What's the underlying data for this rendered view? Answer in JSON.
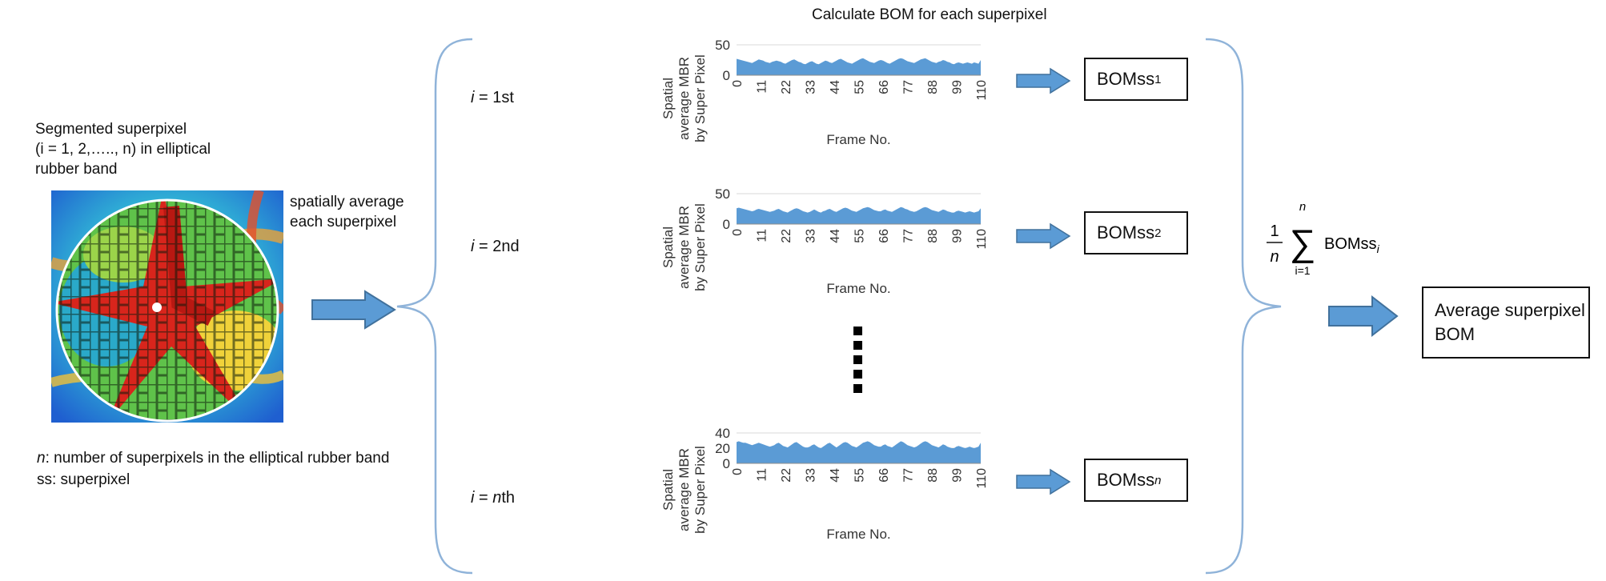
{
  "header": {
    "title": "Calculate BOM for each superpixel"
  },
  "left_panel": {
    "caption_lines": [
      "Segmented superpixel",
      "(i = 1, 2,….., n) in elliptical",
      "rubber band"
    ],
    "caption_i": "i",
    "caption_n": "n",
    "step_label_lines": [
      "spatially average",
      "each superpixel"
    ],
    "legend_n_var": "n",
    "legend_n_text": ": number of superpixels in the elliptical rubber band",
    "legend_ss": "ss: superpixel"
  },
  "rows": [
    {
      "i_var": "i",
      "i_text": " = 1st",
      "output_base": "BOMss",
      "output_sub": "1"
    },
    {
      "i_var": "i",
      "i_text": " = 2nd",
      "output_base": "BOMss",
      "output_sub": "2"
    },
    {
      "i_var": "i",
      "i_text": " = ",
      "i_var2": "n",
      "i_text2": "th",
      "output_base": "BOMss",
      "output_sub": "n"
    }
  ],
  "formula": {
    "numerator": "1",
    "denominator": "n",
    "upper": "n",
    "lower": "i=1",
    "term": "BOMss",
    "term_sub": "i"
  },
  "result": {
    "lines": [
      "Average superpixel",
      "BOM"
    ]
  },
  "icons": {
    "arrow_color": "#5b9bd5",
    "bracket_color": "#8fb3d9",
    "area_fill": "#5b9bd5"
  },
  "chart_data": [
    {
      "type": "area",
      "xlabel": "Frame No.",
      "ylabel": "Spatial average MBR by Super Pixel",
      "ylim": [
        0,
        50
      ],
      "yticks": [
        "50",
        "0"
      ],
      "xticks": [
        "0",
        "11",
        "22",
        "33",
        "44",
        "55",
        "66",
        "77",
        "88",
        "99",
        "110"
      ],
      "values": [
        27,
        26,
        25,
        24,
        23,
        22,
        21,
        20,
        22,
        24,
        26,
        25,
        24,
        22,
        21,
        20,
        22,
        23,
        24,
        23,
        22,
        20,
        19,
        21,
        23,
        25,
        26,
        24,
        22,
        21,
        19,
        18,
        20,
        22,
        23,
        21,
        19,
        18,
        20,
        22,
        24,
        23,
        21,
        20,
        22,
        24,
        26,
        27,
        25,
        23,
        21,
        20,
        19,
        21,
        23,
        25,
        27,
        28,
        26,
        24,
        22,
        21,
        20,
        22,
        24,
        25,
        24,
        22,
        20,
        19,
        21,
        23,
        25,
        27,
        28,
        27,
        25,
        23,
        22,
        21,
        20,
        22,
        24,
        26,
        27,
        28,
        26,
        24,
        22,
        21,
        20,
        22,
        23,
        25,
        24,
        22,
        21,
        19,
        18,
        20,
        21,
        20,
        19,
        20,
        21,
        20,
        19,
        21,
        20,
        19,
        25
      ]
    },
    {
      "type": "area",
      "xlabel": "Frame No.",
      "ylabel": "Spatial average MBR by Super Pixel",
      "ylim": [
        0,
        50
      ],
      "yticks": [
        "50",
        "0"
      ],
      "xticks": [
        "0",
        "11",
        "22",
        "33",
        "44",
        "55",
        "66",
        "77",
        "88",
        "99",
        "110"
      ],
      "values": [
        26,
        27,
        26,
        25,
        24,
        23,
        22,
        21,
        22,
        24,
        25,
        24,
        23,
        22,
        21,
        20,
        21,
        22,
        24,
        25,
        23,
        21,
        20,
        19,
        21,
        23,
        25,
        26,
        25,
        23,
        21,
        20,
        19,
        20,
        22,
        24,
        22,
        20,
        19,
        21,
        22,
        24,
        25,
        23,
        21,
        20,
        22,
        24,
        26,
        27,
        26,
        24,
        22,
        21,
        20,
        22,
        24,
        26,
        27,
        28,
        27,
        25,
        23,
        22,
        21,
        21,
        23,
        24,
        22,
        21,
        20,
        22,
        24,
        26,
        28,
        27,
        25,
        24,
        22,
        21,
        20,
        21,
        23,
        25,
        27,
        28,
        27,
        25,
        23,
        22,
        21,
        20,
        22,
        24,
        23,
        21,
        20,
        19,
        19,
        21,
        22,
        21,
        20,
        19,
        20,
        21,
        20,
        19,
        20,
        21,
        26
      ]
    },
    {
      "type": "area",
      "xlabel": "Frame No.",
      "ylabel": "Spatial average MBR by Super Pixel",
      "ylim": [
        0,
        40
      ],
      "yticks": [
        "40",
        "20",
        "0"
      ],
      "xticks": [
        "0",
        "11",
        "22",
        "33",
        "44",
        "55",
        "66",
        "77",
        "88",
        "99",
        "110"
      ],
      "values": [
        28,
        29,
        28,
        27,
        27,
        26,
        25,
        24,
        25,
        26,
        27,
        26,
        25,
        24,
        23,
        22,
        23,
        24,
        26,
        27,
        25,
        23,
        22,
        21,
        23,
        25,
        27,
        28,
        26,
        24,
        22,
        21,
        21,
        22,
        24,
        25,
        23,
        21,
        20,
        22,
        24,
        26,
        27,
        25,
        23,
        21,
        23,
        25,
        27,
        28,
        27,
        25,
        23,
        22,
        21,
        23,
        25,
        27,
        28,
        29,
        28,
        26,
        24,
        23,
        22,
        22,
        24,
        25,
        23,
        22,
        21,
        23,
        25,
        27,
        29,
        28,
        26,
        24,
        23,
        22,
        21,
        22,
        24,
        26,
        28,
        29,
        28,
        26,
        24,
        23,
        22,
        21,
        23,
        25,
        24,
        22,
        21,
        20,
        20,
        22,
        23,
        22,
        21,
        20,
        21,
        22,
        21,
        20,
        21,
        22,
        27
      ]
    }
  ]
}
